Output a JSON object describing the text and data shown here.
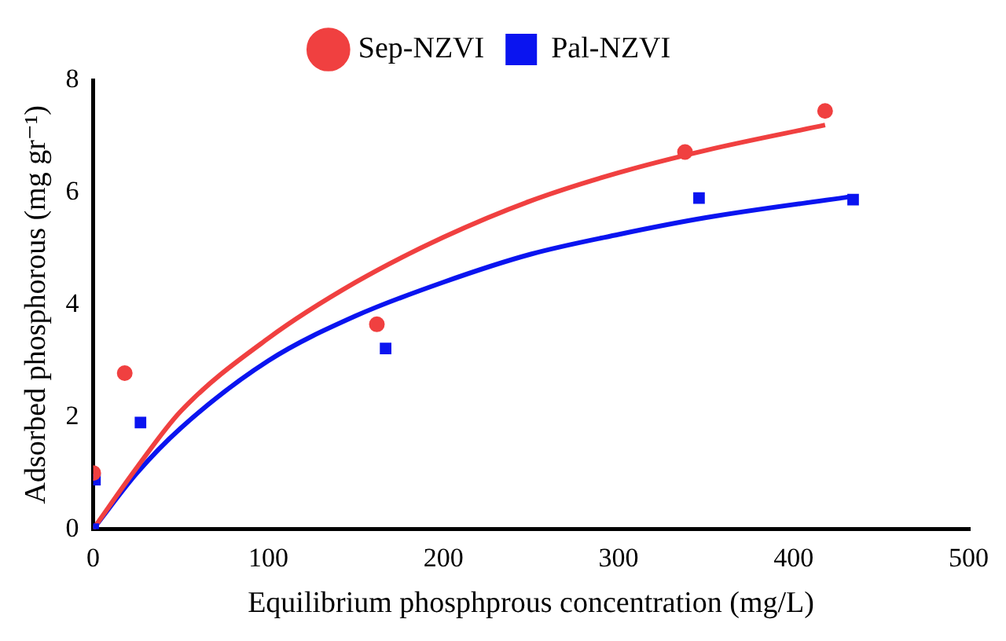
{
  "chart_data": {
    "type": "scatter",
    "xlabel": "Equilibrium phosphprous concentration (mg/L)",
    "ylabel": "Adsorbed phosphorous (mg gr⁻¹)",
    "xlim": [
      0,
      500
    ],
    "xticks": [
      0,
      100,
      200,
      300,
      400,
      500
    ],
    "ylim": [
      0,
      8
    ],
    "yticks": [
      0,
      2,
      4,
      6,
      8
    ],
    "grid": false,
    "legend": "top",
    "series": [
      {
        "name": "Sep-NZVI",
        "color": "#f04040",
        "marker": "circle",
        "x": [
          0,
          18,
          162,
          338,
          418
        ],
        "values": [
          1.0,
          2.78,
          3.65,
          6.72,
          7.45
        ]
      },
      {
        "name": "Pal-NZVI",
        "color": "#0a14f0",
        "marker": "square",
        "x": [
          0,
          1,
          27,
          167,
          346,
          434
        ],
        "values": [
          0,
          0.88,
          1.9,
          3.22,
          5.9,
          5.87
        ]
      },
      {
        "type": "line",
        "color": "#f04040",
        "x": [
          0,
          25,
          50,
          100,
          150,
          200,
          250,
          300,
          350,
          418
        ],
        "values": [
          0,
          1.1,
          2.1,
          3.4,
          4.4,
          5.2,
          5.85,
          6.35,
          6.75,
          7.2
        ]
      },
      {
        "type": "line",
        "color": "#0a14f0",
        "x": [
          0,
          25,
          50,
          100,
          150,
          200,
          250,
          300,
          350,
          434
        ],
        "values": [
          0,
          1.0,
          1.8,
          3.0,
          3.8,
          4.4,
          4.9,
          5.25,
          5.55,
          5.93
        ]
      }
    ]
  }
}
